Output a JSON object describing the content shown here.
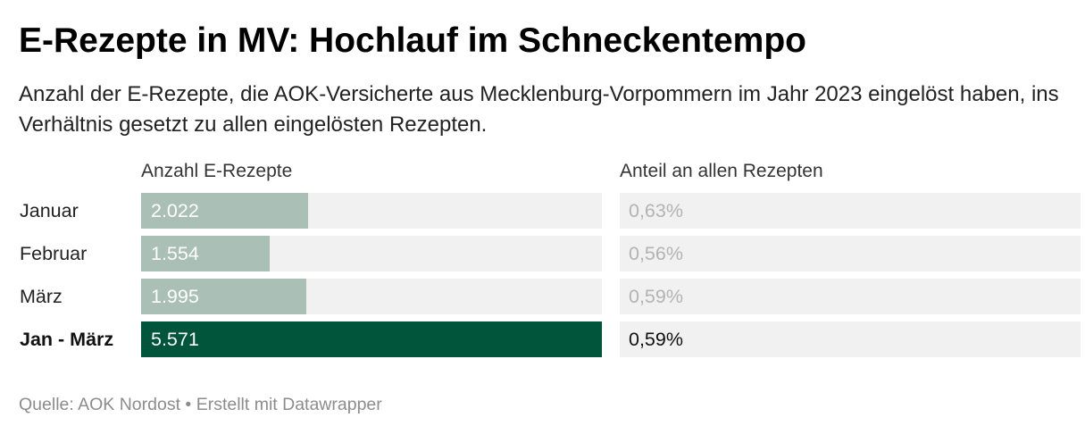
{
  "title": "E-Rezepte in MV: Hochlauf im Schneckentempo",
  "subtitle": "Anzahl der E-Rezepte, die AOK-Versicherte aus Mecklenburg-Vorpommern im Jahr 2023 eingelöst haben, ins Verhältnis gesetzt zu allen eingelösten Rezepten.",
  "footer": {
    "source": "Quelle: AOK Nordost",
    "separator": " • ",
    "credit": "Erstellt mit Datawrapper"
  },
  "colors": {
    "bar_month": "#aabfb6",
    "bar_total": "#00553a",
    "track": "#f1f1f1"
  },
  "chart_data": {
    "type": "table",
    "columns": [
      "Anzahl E-Rezepte",
      "Anteil an allen Rezepten"
    ],
    "bar_max": 5571,
    "rows": [
      {
        "label": "Januar",
        "count": 2022,
        "count_label": "2.022",
        "share": 0.63,
        "share_label": "0,63%",
        "total": false
      },
      {
        "label": "Februar",
        "count": 1554,
        "count_label": "1.554",
        "share": 0.56,
        "share_label": "0,56%",
        "total": false
      },
      {
        "label": "März",
        "count": 1995,
        "count_label": "1.995",
        "share": 0.59,
        "share_label": "0,59%",
        "total": false
      },
      {
        "label": "Jan - März",
        "count": 5571,
        "count_label": "5.571",
        "share": 0.59,
        "share_label": "0,59%",
        "total": true
      }
    ]
  }
}
